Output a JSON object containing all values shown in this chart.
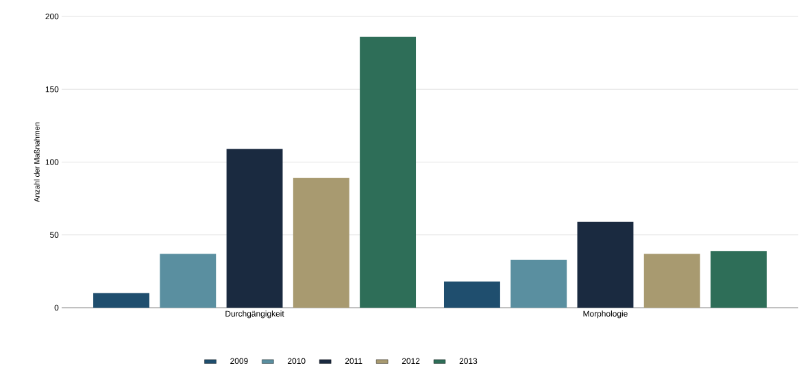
{
  "chart_data": {
    "type": "bar",
    "ylabel": "Anzahl der Maßnahmen",
    "categories": [
      "Durchgängigkeit",
      "Morphologie"
    ],
    "series": [
      {
        "name": "2009",
        "color": "#1f4e6e",
        "values": [
          10,
          18
        ]
      },
      {
        "name": "2010",
        "color": "#5a8fa0",
        "values": [
          37,
          33
        ]
      },
      {
        "name": "2011",
        "color": "#1a2a40",
        "values": [
          109,
          59
        ]
      },
      {
        "name": "2012",
        "color": "#a89a70",
        "values": [
          89,
          37
        ]
      },
      {
        "name": "2013",
        "color": "#2e6e58",
        "values": [
          186,
          39
        ]
      }
    ],
    "ylim": [
      0,
      200
    ],
    "yticks": [
      0,
      50,
      100,
      150,
      200
    ],
    "grid": "y",
    "legend": "bottom"
  }
}
